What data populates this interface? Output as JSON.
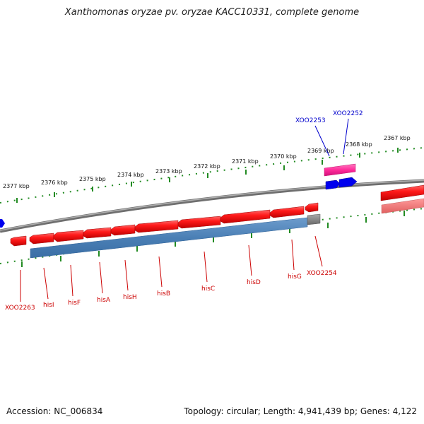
{
  "title": "Xanthomonas oryzae pv. oryzae KACC10331, complete genome",
  "accession": "Accession: NC_006834",
  "summary": "Topology: circular; Length: 4,941,439 bp; Genes: 4,122",
  "kbp_labels": [
    "2377 kbp",
    "2376 kbp",
    "2375 kbp",
    "2374 kbp",
    "2373 kbp",
    "2372 kbp",
    "2371 kbp",
    "2370 kbp",
    "2369 kbp",
    "2368 kbp",
    "2367 kbp"
  ],
  "gene_labels_bottom": [
    "XOO2263",
    "hisI",
    "hisF",
    "hisA",
    "hisH",
    "hisB",
    "hisC",
    "hisD",
    "hisG",
    "XOO2254"
  ],
  "gene_labels_top": [
    "XOO2253",
    "XOO2252"
  ],
  "colors": {
    "forward_gene": "#ff1a1a",
    "reverse_gene_blue": "#0000ee",
    "operon_bar": "#4a7fb5",
    "highlight_gene": "#ff2a9a",
    "backbone": "#8a8a8a",
    "ticks": "#228b22",
    "label_red": "#cc0000",
    "label_blue": "#0000cc"
  }
}
